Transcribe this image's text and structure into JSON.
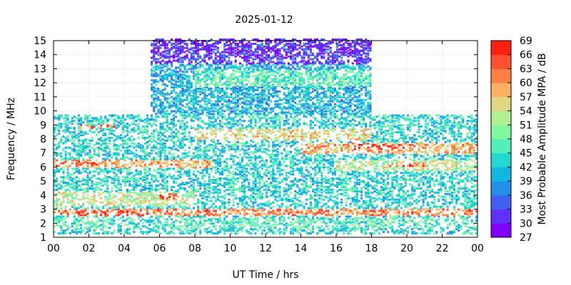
{
  "chart_data": {
    "type": "heatmap",
    "title": "2025-01-12",
    "xlabel": "UT Time / hrs",
    "ylabel": "Frequency / MHz",
    "colorbar_label": "Most Probable Amplitude MPA / dB",
    "xlim": [
      0,
      24
    ],
    "ylim": [
      1,
      15
    ],
    "x_ticks": [
      "00",
      "02",
      "04",
      "06",
      "08",
      "10",
      "12",
      "14",
      "16",
      "18",
      "20",
      "22",
      "00"
    ],
    "y_ticks": [
      "1",
      "2",
      "3",
      "4",
      "5",
      "6",
      "7",
      "8",
      "9",
      "10",
      "11",
      "12",
      "13",
      "14",
      "15"
    ],
    "colorbar_ticks": [
      "27",
      "30",
      "33",
      "36",
      "39",
      "42",
      "45",
      "48",
      "51",
      "54",
      "57",
      "60",
      "63",
      "66",
      "69"
    ],
    "colorbar_range": [
      27,
      69
    ],
    "colorbar_colors": [
      "#8000ff",
      "#6030ff",
      "#4060f0",
      "#2090e8",
      "#10b8e0",
      "#20d8d0",
      "#50f0b8",
      "#80f8a0",
      "#b0f090",
      "#e0d880",
      "#ffb060",
      "#ff8040",
      "#ff5030",
      "#ff2010"
    ],
    "grid": true,
    "bands": [
      {
        "t0": 0.0,
        "t1": 24.0,
        "f0": 1.2,
        "f1": 9.6,
        "mpa": 42
      },
      {
        "t0": 5.5,
        "t1": 18.0,
        "f0": 9.6,
        "f1": 15.0,
        "mpa": 39
      },
      {
        "t0": 5.5,
        "t1": 18.0,
        "f0": 13.2,
        "f1": 15.0,
        "mpa": 30
      },
      {
        "t0": 0.0,
        "t1": 24.0,
        "f0": 2.5,
        "f1": 3.0,
        "mpa": 60
      },
      {
        "t0": 0.0,
        "t1": 8.0,
        "f0": 3.2,
        "f1": 4.2,
        "mpa": 51
      },
      {
        "t0": 0.0,
        "t1": 9.0,
        "f0": 5.8,
        "f1": 6.4,
        "mpa": 57
      },
      {
        "t0": 8.0,
        "t1": 18.0,
        "f0": 7.8,
        "f1": 8.6,
        "mpa": 54
      },
      {
        "t0": 14.0,
        "t1": 24.0,
        "f0": 6.8,
        "f1": 7.6,
        "mpa": 57
      },
      {
        "t0": 16.0,
        "t1": 24.0,
        "f0": 5.6,
        "f1": 6.4,
        "mpa": 51
      },
      {
        "t0": 0.0,
        "t1": 24.0,
        "f0": 1.6,
        "f1": 2.4,
        "mpa": 45
      },
      {
        "t0": 8.0,
        "t1": 18.0,
        "f0": 11.6,
        "f1": 12.8,
        "mpa": 45
      }
    ],
    "hotspots": [
      {
        "t0": 0.3,
        "t1": 6.0,
        "f0": 2.5,
        "f1": 2.9,
        "mpa": 66
      },
      {
        "t0": 1.5,
        "t1": 3.5,
        "f0": 8.6,
        "f1": 8.9,
        "mpa": 63
      },
      {
        "t0": 0.0,
        "t1": 2.5,
        "f0": 5.9,
        "f1": 6.3,
        "mpa": 66
      },
      {
        "t0": 17.0,
        "t1": 20.0,
        "f0": 7.1,
        "f1": 7.5,
        "mpa": 69
      },
      {
        "t0": 19.0,
        "t1": 21.0,
        "f0": 5.9,
        "f1": 6.2,
        "mpa": 63
      },
      {
        "t0": 6.0,
        "t1": 7.0,
        "f0": 3.7,
        "f1": 4.1,
        "mpa": 66
      },
      {
        "t0": 18.0,
        "t1": 22.0,
        "f0": 2.6,
        "f1": 2.9,
        "mpa": 60
      }
    ]
  }
}
